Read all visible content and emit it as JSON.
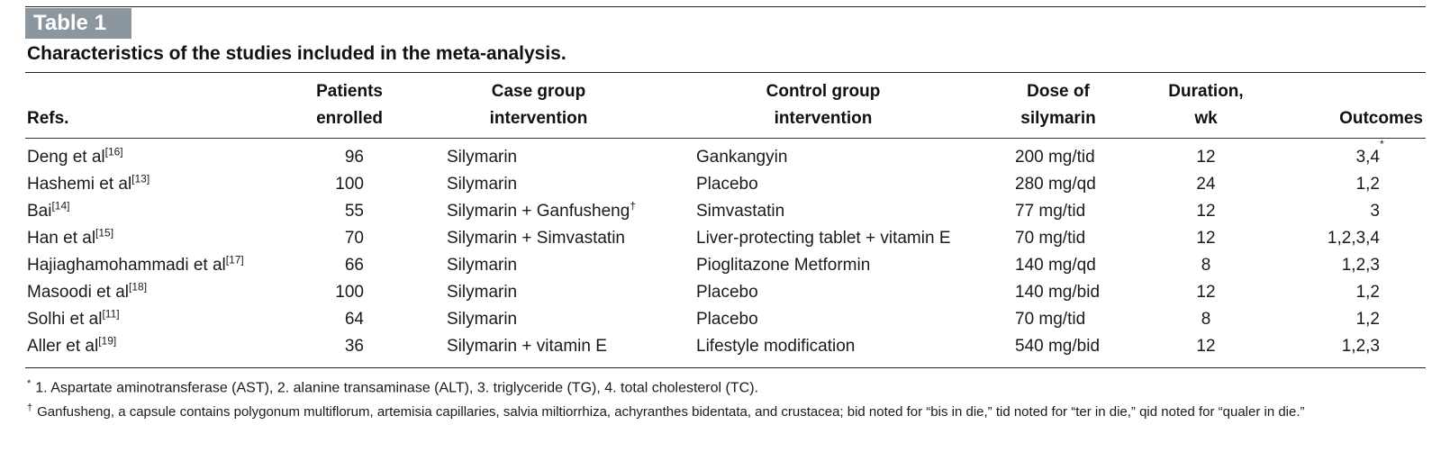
{
  "table": {
    "label": "Table 1",
    "title": "Characteristics of the studies included in the meta-analysis.",
    "headers": {
      "refs": "Refs.",
      "patients_l1": "Patients",
      "patients_l2": "enrolled",
      "case_l1": "Case group",
      "case_l2": "intervention",
      "control_l1": "Control group",
      "control_l2": "intervention",
      "dose_l1": "Dose of",
      "dose_l2": "silymarin",
      "duration_l1": "Duration,",
      "duration_l2": "wk",
      "outcomes": "Outcomes"
    },
    "rows": [
      {
        "ref": "Deng et al",
        "cite": "[16]",
        "patients": "96",
        "case": "Silymarin",
        "case_mark": "",
        "control": "Gankangyin",
        "dose": "200 mg/tid",
        "duration": "12",
        "outcomes": "3,4",
        "outcomes_mark": "*"
      },
      {
        "ref": "Hashemi et al",
        "cite": "[13]",
        "patients": "100",
        "case": "Silymarin",
        "case_mark": "",
        "control": "Placebo",
        "dose": "280 mg/qd",
        "duration": "24",
        "outcomes": "1,2",
        "outcomes_mark": ""
      },
      {
        "ref": "Bai",
        "cite": "[14]",
        "patients": "55",
        "case": "Silymarin + Ganfusheng",
        "case_mark": "†",
        "control": "Simvastatin",
        "dose": "77 mg/tid",
        "duration": "12",
        "outcomes": "3",
        "outcomes_mark": ""
      },
      {
        "ref": "Han et al",
        "cite": "[15]",
        "patients": "70",
        "case": "Silymarin + Simvastatin",
        "case_mark": "",
        "control": "Liver-protecting tablet + vitamin E",
        "dose": "70 mg/tid",
        "duration": "12",
        "outcomes": "1,2,3,4",
        "outcomes_mark": ""
      },
      {
        "ref": "Hajiaghamohammadi et al",
        "cite": "[17]",
        "patients": "66",
        "case": "Silymarin",
        "case_mark": "",
        "control": "Pioglitazone Metformin",
        "dose": "140 mg/qd",
        "duration": "8",
        "outcomes": "1,2,3",
        "outcomes_mark": ""
      },
      {
        "ref": "Masoodi et al",
        "cite": "[18]",
        "patients": "100",
        "case": "Silymarin",
        "case_mark": "",
        "control": "Placebo",
        "dose": "140 mg/bid",
        "duration": "12",
        "outcomes": "1,2",
        "outcomes_mark": ""
      },
      {
        "ref": "Solhi et al",
        "cite": "[11]",
        "patients": "64",
        "case": "Silymarin",
        "case_mark": "",
        "control": "Placebo",
        "dose": "70 mg/tid",
        "duration": "8",
        "outcomes": "1,2",
        "outcomes_mark": ""
      },
      {
        "ref": "Aller et al",
        "cite": "[19]",
        "patients": "36",
        "case": "Silymarin + vitamin E",
        "case_mark": "",
        "control": "Lifestyle modification",
        "dose": "540 mg/bid",
        "duration": "12",
        "outcomes": "1,2,3",
        "outcomes_mark": ""
      }
    ],
    "footnotes": [
      {
        "mark": "*",
        "text": "1. Aspartate aminotransferase (AST), 2. alanine transaminase (ALT), 3. triglyceride (TG), 4. total cholesterol (TC)."
      },
      {
        "mark": "†",
        "text": "Ganfusheng, a capsule contains polygonum multiflorum, artemisia capillaries, salvia miltiorrhiza, achyranthes bidentata, and crustacea; bid noted for “bis in die,” tid noted for “ter in die,” qid noted for “qualer in die.”"
      }
    ]
  }
}
